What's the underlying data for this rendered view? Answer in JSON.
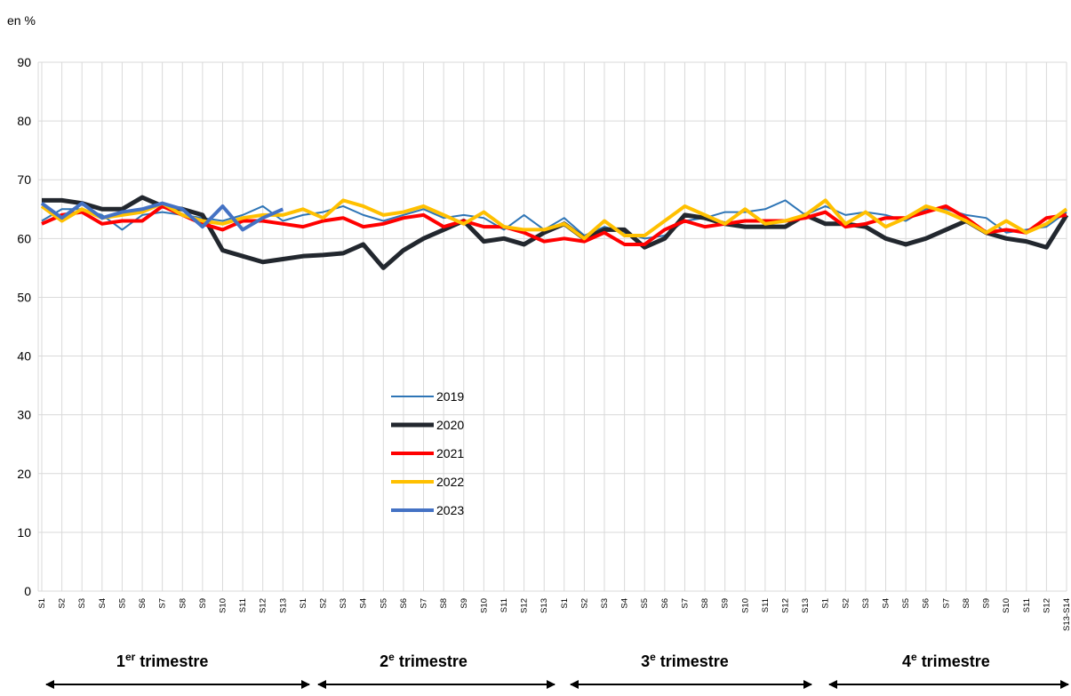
{
  "chart_data": {
    "type": "line",
    "y_unit": "en %",
    "categories": [
      "S1",
      "S2",
      "S3",
      "S4",
      "S5",
      "S6",
      "S7",
      "S8",
      "S9",
      "S10",
      "S11",
      "S12",
      "S13",
      "S1",
      "S2",
      "S3",
      "S4",
      "S5",
      "S6",
      "S7",
      "S8",
      "S9",
      "S10",
      "S11",
      "S12",
      "S13",
      "S1",
      "S2",
      "S3",
      "S4",
      "S5",
      "S6",
      "S7",
      "S8",
      "S9",
      "S10",
      "S11",
      "S12",
      "S13",
      "S1",
      "S2",
      "S3",
      "S4",
      "S5",
      "S6",
      "S7",
      "S8",
      "S9",
      "S10",
      "S11",
      "S12",
      "S13-S14"
    ],
    "quarters": [
      {
        "number": "1",
        "sup": "er",
        "text": "trimestre"
      },
      {
        "number": "2",
        "sup": "e",
        "text": "trimestre"
      },
      {
        "number": "3",
        "sup": "e",
        "text": "trimestre"
      },
      {
        "number": "4",
        "sup": "e",
        "text": "trimestre"
      }
    ],
    "series": [
      {
        "name": "2019",
        "color": "#2e75b6",
        "line_width": 2,
        "values": [
          63,
          65,
          65,
          64,
          61.5,
          64,
          64.5,
          64,
          63.5,
          63,
          64,
          65.5,
          63,
          64,
          64.5,
          65.5,
          64,
          63,
          64,
          65,
          63.5,
          64,
          63.5,
          61.5,
          64,
          61.5,
          63.5,
          60.5,
          62,
          61,
          60,
          60.5,
          63,
          63.5,
          64.5,
          64.5,
          65,
          66.5,
          64,
          65.5,
          64,
          64.5,
          64,
          63,
          65,
          65,
          64,
          63.5,
          61,
          61.5,
          62,
          64.5
        ]
      },
      {
        "name": "2020",
        "color": "#22272e",
        "line_width": 5,
        "values": [
          66.5,
          66.5,
          66,
          65,
          65,
          67,
          65.5,
          65,
          64,
          58,
          57,
          56,
          56.5,
          57,
          57.2,
          57.5,
          59,
          55,
          58,
          60,
          61.5,
          63,
          59.5,
          60,
          59,
          61,
          62.5,
          60,
          61.5,
          61.5,
          58.5,
          60,
          64,
          63.5,
          62.5,
          62,
          62,
          62,
          64,
          62.5,
          62.5,
          62,
          60,
          59,
          60,
          61.5,
          63,
          61,
          60,
          59.5,
          58.5,
          64
        ]
      },
      {
        "name": "2021",
        "color": "#ff0000",
        "line_width": 4,
        "values": [
          62.5,
          64,
          64.5,
          62.5,
          63,
          63,
          65.5,
          64,
          62.5,
          61.5,
          63,
          63,
          62.5,
          62,
          63,
          63.5,
          62,
          62.5,
          63.5,
          64,
          62,
          63,
          62,
          62,
          61,
          59.5,
          60,
          59.5,
          61,
          59,
          59,
          61.5,
          63,
          62,
          62.5,
          63,
          63,
          63,
          63.5,
          64.5,
          62,
          62.5,
          63.5,
          63.5,
          64.5,
          65.5,
          63.5,
          61,
          61.5,
          61,
          63.5,
          64
        ]
      },
      {
        "name": "2022",
        "color": "#ffc000",
        "line_width": 4,
        "values": [
          65.5,
          63,
          65,
          63.5,
          64,
          64.5,
          66,
          64,
          63,
          62.5,
          63.5,
          64,
          64,
          65,
          63.5,
          66.5,
          65.5,
          64,
          64.5,
          65.5,
          64,
          62.5,
          64.5,
          62,
          61.5,
          61.5,
          62.5,
          60,
          63,
          60.5,
          60.5,
          63,
          65.5,
          64,
          62.5,
          65,
          62.5,
          63,
          64,
          66.5,
          62.5,
          64.5,
          62,
          63.5,
          65.5,
          64.5,
          63,
          61,
          63,
          61,
          62.5,
          65
        ]
      },
      {
        "name": "2023",
        "color": "#4472c4",
        "line_width": 4,
        "values": [
          66,
          63.5,
          66,
          63.5,
          64.5,
          65,
          66,
          65,
          62,
          65.5,
          61.5,
          63.5,
          65,
          null,
          null,
          null,
          null,
          null,
          null,
          null,
          null,
          null,
          null,
          null,
          null,
          null,
          null,
          null,
          null,
          null,
          null,
          null,
          null,
          null,
          null,
          null,
          null,
          null,
          null,
          null,
          null,
          null,
          null,
          null,
          null,
          null,
          null,
          null,
          null,
          null,
          null,
          null
        ]
      }
    ],
    "ylim": [
      0,
      90
    ],
    "yticks": [
      0,
      10,
      20,
      30,
      40,
      50,
      60,
      70,
      80,
      90
    ],
    "grid": true
  }
}
